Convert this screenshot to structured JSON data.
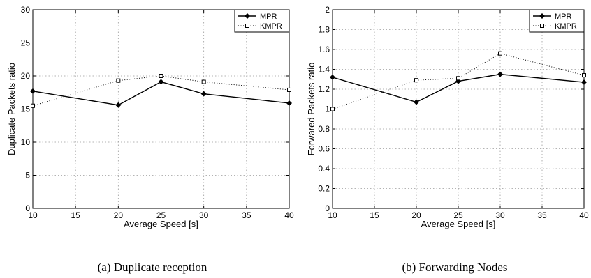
{
  "chart_data": [
    {
      "type": "line",
      "caption": "(a) Duplicate reception",
      "xlabel": "Average Speed [s]",
      "ylabel": "Duplicate Packets ratio",
      "x": [
        10,
        20,
        25,
        30,
        40
      ],
      "xlim": [
        10,
        40
      ],
      "ylim": [
        0,
        30
      ],
      "xticks": [
        "10",
        "15",
        "20",
        "25",
        "30",
        "35",
        "40"
      ],
      "yticks": [
        "0",
        "5",
        "10",
        "15",
        "20",
        "25",
        "30"
      ],
      "grid": true,
      "legend_position": "top-right",
      "series": [
        {
          "name": "MPR",
          "values": [
            17.7,
            15.6,
            19.1,
            17.3,
            15.9
          ],
          "style": "solid",
          "marker": "diamond",
          "color": "#000000"
        },
        {
          "name": "KMPR",
          "values": [
            15.5,
            19.3,
            20.0,
            19.1,
            17.9
          ],
          "style": "dotted",
          "marker": "square",
          "color": "#000000"
        }
      ]
    },
    {
      "type": "line",
      "caption": "(b) Forwarding Nodes",
      "xlabel": "Average Speed [s]",
      "ylabel": "Forwared Packets ratio",
      "x": [
        10,
        20,
        25,
        30,
        40
      ],
      "xlim": [
        10,
        40
      ],
      "ylim": [
        0,
        2
      ],
      "xticks": [
        "10",
        "15",
        "20",
        "25",
        "30",
        "35",
        "40"
      ],
      "yticks": [
        "0",
        "0.2",
        "0.4",
        "0.6",
        "0.8",
        "1",
        "1.2",
        "1.4",
        "1.6",
        "1.8",
        "2"
      ],
      "grid": true,
      "legend_position": "top-right",
      "series": [
        {
          "name": "MPR",
          "values": [
            1.32,
            1.07,
            1.28,
            1.35,
            1.27
          ],
          "style": "solid",
          "marker": "diamond",
          "color": "#000000"
        },
        {
          "name": "KMPR",
          "values": [
            1.0,
            1.29,
            1.31,
            1.56,
            1.34
          ],
          "style": "dotted",
          "marker": "square",
          "color": "#000000"
        }
      ]
    }
  ]
}
